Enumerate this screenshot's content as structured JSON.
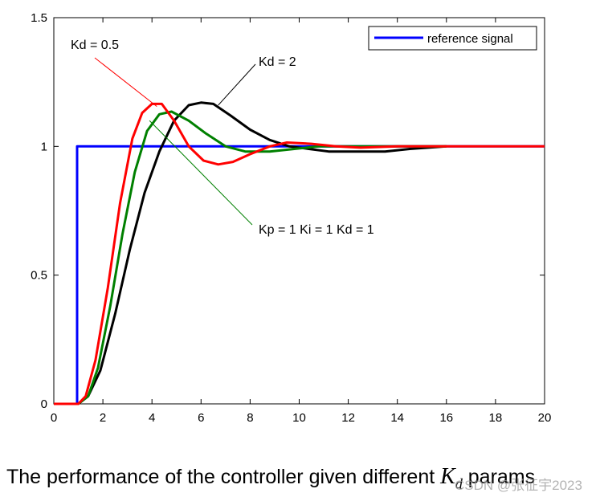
{
  "chart_data": {
    "type": "line",
    "title": "",
    "xlabel": "",
    "ylabel": "",
    "xlim": [
      0,
      20
    ],
    "ylim": [
      0,
      1.5
    ],
    "x_ticks": [
      0,
      2,
      4,
      6,
      8,
      10,
      12,
      14,
      16,
      18,
      20
    ],
    "y_ticks": [
      0,
      0.5,
      1,
      1.5
    ],
    "x_tick_labels": [
      "0",
      "2",
      "4",
      "6",
      "8",
      "10",
      "12",
      "14",
      "16",
      "18",
      "20"
    ],
    "y_tick_labels": [
      "0",
      "0.5",
      "1",
      "1.5"
    ],
    "grid": false,
    "legend": {
      "position": "top-right",
      "entries": [
        "reference signal"
      ]
    },
    "series": [
      {
        "name": "reference signal",
        "color": "#0000ff",
        "points": [
          [
            0,
            0
          ],
          [
            0.95,
            0
          ],
          [
            0.95,
            1
          ],
          [
            20,
            1
          ]
        ]
      },
      {
        "name": "Kd = 0.5",
        "color": "#ff0000",
        "points": [
          [
            0,
            0
          ],
          [
            1,
            0
          ],
          [
            1.3,
            0.03
          ],
          [
            1.7,
            0.17
          ],
          [
            2.2,
            0.45
          ],
          [
            2.7,
            0.78
          ],
          [
            3.2,
            1.03
          ],
          [
            3.6,
            1.13
          ],
          [
            4.0,
            1.165
          ],
          [
            4.4,
            1.165
          ],
          [
            4.9,
            1.1
          ],
          [
            5.5,
            1.0
          ],
          [
            6.1,
            0.945
          ],
          [
            6.7,
            0.93
          ],
          [
            7.3,
            0.94
          ],
          [
            8.0,
            0.97
          ],
          [
            8.8,
            1.0
          ],
          [
            9.5,
            1.015
          ],
          [
            10.5,
            1.01
          ],
          [
            11.5,
            1.0
          ],
          [
            12.5,
            0.995
          ],
          [
            14,
            1.0
          ],
          [
            16,
            1.0
          ],
          [
            20,
            1.0
          ]
        ]
      },
      {
        "name": "Kp = 1  Ki = 1  Kd = 1",
        "color": "#008000",
        "points": [
          [
            0,
            0
          ],
          [
            1,
            0
          ],
          [
            1.4,
            0.03
          ],
          [
            1.8,
            0.14
          ],
          [
            2.3,
            0.38
          ],
          [
            2.8,
            0.66
          ],
          [
            3.3,
            0.9
          ],
          [
            3.8,
            1.06
          ],
          [
            4.3,
            1.125
          ],
          [
            4.8,
            1.135
          ],
          [
            5.5,
            1.1
          ],
          [
            6.2,
            1.05
          ],
          [
            7.0,
            1.0
          ],
          [
            7.8,
            0.98
          ],
          [
            8.8,
            0.98
          ],
          [
            9.8,
            0.99
          ],
          [
            10.8,
            1.0
          ],
          [
            12,
            1.0
          ],
          [
            13.5,
            1.0
          ],
          [
            14.5,
            1.0
          ],
          [
            16,
            1.0
          ]
        ]
      },
      {
        "name": "Kd = 2",
        "color": "#000000",
        "points": [
          [
            0,
            0
          ],
          [
            1,
            0
          ],
          [
            1.4,
            0.03
          ],
          [
            1.9,
            0.13
          ],
          [
            2.5,
            0.35
          ],
          [
            3.1,
            0.6
          ],
          [
            3.7,
            0.82
          ],
          [
            4.3,
            0.98
          ],
          [
            4.9,
            1.1
          ],
          [
            5.5,
            1.16
          ],
          [
            6.0,
            1.17
          ],
          [
            6.5,
            1.165
          ],
          [
            7.2,
            1.12
          ],
          [
            8.0,
            1.065
          ],
          [
            8.8,
            1.025
          ],
          [
            9.6,
            1.0
          ],
          [
            10.4,
            0.99
          ],
          [
            11.2,
            0.98
          ],
          [
            12.5,
            0.98
          ],
          [
            13.5,
            0.98
          ],
          [
            14.5,
            0.99
          ],
          [
            16,
            1.0
          ]
        ]
      }
    ],
    "annotations": [
      {
        "text": "Kd = 0.5",
        "arrow_to": [
          4.2,
          1.155
        ]
      },
      {
        "text": "Kd = 2",
        "arrow_to": [
          6.7,
          1.16
        ]
      },
      {
        "text": "Kp = 1  Ki = 1  Kd = 1",
        "arrow_to": [
          3.9,
          1.1
        ]
      }
    ]
  },
  "caption": {
    "text_before": "The performance of the controller given different ",
    "symbol_main": "K",
    "symbol_sub": "d",
    "text_after": " params"
  },
  "watermark": "CSDN @张征宇2023"
}
